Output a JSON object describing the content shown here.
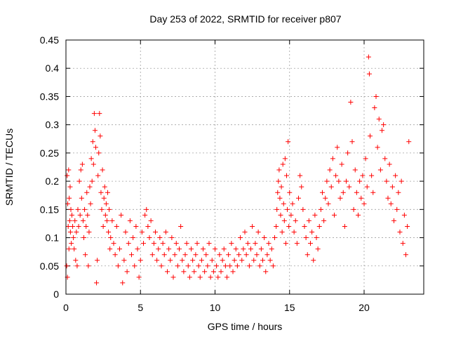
{
  "chart_data": {
    "type": "scatter",
    "title": "Day 253 of 2022, SRMTID for receiver p807",
    "xlabel": "GPS time / hours",
    "ylabel": "SRMTID / TECUs",
    "xlim": [
      0,
      24
    ],
    "ylim": [
      0,
      0.45
    ],
    "xticks": [
      0,
      5,
      10,
      15,
      20
    ],
    "xtick_labels": [
      "0",
      "5",
      "10",
      "15",
      "20"
    ],
    "yticks": [
      0,
      0.05,
      0.1,
      0.15,
      0.2,
      0.25,
      0.3,
      0.35,
      0.4,
      0.45
    ],
    "ytick_labels": [
      "0",
      "0.05",
      "0.1",
      "0.15",
      "0.2",
      "0.25",
      "0.3",
      "0.35",
      "0.4",
      "0.45"
    ],
    "grid": true,
    "marker": "plus",
    "marker_color": "#ff0000",
    "series": [
      {
        "name": "SRMTID",
        "points": [
          [
            0.05,
            0.05
          ],
          [
            0.08,
            0.21
          ],
          [
            0.1,
            0.03
          ],
          [
            0.12,
            0.16
          ],
          [
            0.15,
            0.12
          ],
          [
            0.18,
            0.22
          ],
          [
            0.2,
            0.08
          ],
          [
            0.22,
            0.17
          ],
          [
            0.25,
            0.13
          ],
          [
            0.28,
            0.19
          ],
          [
            0.3,
            0.11
          ],
          [
            0.33,
            0.15
          ],
          [
            0.36,
            0.09
          ],
          [
            0.4,
            0.14
          ],
          [
            0.45,
            0.12
          ],
          [
            0.5,
            0.1
          ],
          [
            0.55,
            0.08
          ],
          [
            0.6,
            0.13
          ],
          [
            0.65,
            0.06
          ],
          [
            0.7,
            0.11
          ],
          [
            0.75,
            0.05
          ],
          [
            0.8,
            0.15
          ],
          [
            0.85,
            0.12
          ],
          [
            0.9,
            0.2
          ],
          [
            0.95,
            0.14
          ],
          [
            1.0,
            0.22
          ],
          [
            1.05,
            0.17
          ],
          [
            1.1,
            0.23
          ],
          [
            1.15,
            0.13
          ],
          [
            1.2,
            0.1
          ],
          [
            1.25,
            0.15
          ],
          [
            1.3,
            0.07
          ],
          [
            1.35,
            0.12
          ],
          [
            1.4,
            0.18
          ],
          [
            1.45,
            0.14
          ],
          [
            1.5,
            0.05
          ],
          [
            1.55,
            0.11
          ],
          [
            1.6,
            0.19
          ],
          [
            1.65,
            0.16
          ],
          [
            1.7,
            0.24
          ],
          [
            1.75,
            0.2
          ],
          [
            1.8,
            0.27
          ],
          [
            1.85,
            0.23
          ],
          [
            1.9,
            0.32
          ],
          [
            1.95,
            0.29
          ],
          [
            2.0,
            0.26
          ],
          [
            2.05,
            0.02
          ],
          [
            2.1,
            0.06
          ],
          [
            2.15,
            0.21
          ],
          [
            2.2,
            0.25
          ],
          [
            2.25,
            0.32
          ],
          [
            2.3,
            0.28
          ],
          [
            2.35,
            0.18
          ],
          [
            2.4,
            0.15
          ],
          [
            2.45,
            0.22
          ],
          [
            2.5,
            0.12
          ],
          [
            2.55,
            0.17
          ],
          [
            2.6,
            0.19
          ],
          [
            2.65,
            0.14
          ],
          [
            2.7,
            0.16
          ],
          [
            2.75,
            0.13
          ],
          [
            2.8,
            0.18
          ],
          [
            2.85,
            0.11
          ],
          [
            2.9,
            0.15
          ],
          [
            2.95,
            0.08
          ],
          [
            3.0,
            0.1
          ],
          [
            3.1,
            0.13
          ],
          [
            3.2,
            0.09
          ],
          [
            3.3,
            0.07
          ],
          [
            3.4,
            0.12
          ],
          [
            3.5,
            0.05
          ],
          [
            3.6,
            0.08
          ],
          [
            3.7,
            0.14
          ],
          [
            3.8,
            0.02
          ],
          [
            3.9,
            0.06
          ],
          [
            4.0,
            0.11
          ],
          [
            4.1,
            0.04
          ],
          [
            4.2,
            0.09
          ],
          [
            4.3,
            0.13
          ],
          [
            4.4,
            0.07
          ],
          [
            4.5,
            0.1
          ],
          [
            4.6,
            0.05
          ],
          [
            4.7,
            0.12
          ],
          [
            4.8,
            0.08
          ],
          [
            4.9,
            0.03
          ],
          [
            5.0,
            0.06
          ],
          [
            5.1,
            0.11
          ],
          [
            5.2,
            0.09
          ],
          [
            5.3,
            0.14
          ],
          [
            5.4,
            0.15
          ],
          [
            5.5,
            0.12
          ],
          [
            5.6,
            0.1
          ],
          [
            5.7,
            0.13
          ],
          [
            5.8,
            0.07
          ],
          [
            5.9,
            0.09
          ],
          [
            6.0,
            0.11
          ],
          [
            6.1,
            0.06
          ],
          [
            6.2,
            0.08
          ],
          [
            6.3,
            0.1
          ],
          [
            6.4,
            0.05
          ],
          [
            6.5,
            0.09
          ],
          [
            6.6,
            0.07
          ],
          [
            6.7,
            0.11
          ],
          [
            6.8,
            0.04
          ],
          [
            6.9,
            0.08
          ],
          [
            7.0,
            0.06
          ],
          [
            7.1,
            0.1
          ],
          [
            7.2,
            0.03
          ],
          [
            7.3,
            0.07
          ],
          [
            7.4,
            0.09
          ],
          [
            7.5,
            0.05
          ],
          [
            7.6,
            0.08
          ],
          [
            7.7,
            0.12
          ],
          [
            7.8,
            0.06
          ],
          [
            7.9,
            0.04
          ],
          [
            8.0,
            0.07
          ],
          [
            8.1,
            0.09
          ],
          [
            8.2,
            0.05
          ],
          [
            8.3,
            0.03
          ],
          [
            8.4,
            0.08
          ],
          [
            8.5,
            0.06
          ],
          [
            8.6,
            0.04
          ],
          [
            8.7,
            0.07
          ],
          [
            8.8,
            0.09
          ],
          [
            8.9,
            0.05
          ],
          [
            9.0,
            0.03
          ],
          [
            9.1,
            0.06
          ],
          [
            9.2,
            0.08
          ],
          [
            9.3,
            0.04
          ],
          [
            9.4,
            0.07
          ],
          [
            9.5,
            0.05
          ],
          [
            9.6,
            0.09
          ],
          [
            9.7,
            0.03
          ],
          [
            9.8,
            0.06
          ],
          [
            9.9,
            0.04
          ],
          [
            10.0,
            0.08
          ],
          [
            10.1,
            0.05
          ],
          [
            10.2,
            0.03
          ],
          [
            10.3,
            0.07
          ],
          [
            10.4,
            0.04
          ],
          [
            10.5,
            0.06
          ],
          [
            10.6,
            0.08
          ],
          [
            10.7,
            0.05
          ],
          [
            10.8,
            0.03
          ],
          [
            10.9,
            0.07
          ],
          [
            11.0,
            0.05
          ],
          [
            11.1,
            0.09
          ],
          [
            11.2,
            0.04
          ],
          [
            11.3,
            0.06
          ],
          [
            11.4,
            0.08
          ],
          [
            11.5,
            0.05
          ],
          [
            11.6,
            0.07
          ],
          [
            11.7,
            0.1
          ],
          [
            11.8,
            0.06
          ],
          [
            11.9,
            0.08
          ],
          [
            12.0,
            0.11
          ],
          [
            12.1,
            0.07
          ],
          [
            12.2,
            0.09
          ],
          [
            12.3,
            0.05
          ],
          [
            12.4,
            0.08
          ],
          [
            12.5,
            0.12
          ],
          [
            12.6,
            0.06
          ],
          [
            12.7,
            0.09
          ],
          [
            12.8,
            0.07
          ],
          [
            12.9,
            0.11
          ],
          [
            13.0,
            0.05
          ],
          [
            13.1,
            0.08
          ],
          [
            13.2,
            0.06
          ],
          [
            13.3,
            0.1
          ],
          [
            13.4,
            0.04
          ],
          [
            13.5,
            0.07
          ],
          [
            13.6,
            0.09
          ],
          [
            13.7,
            0.06
          ],
          [
            13.8,
            0.08
          ],
          [
            13.9,
            0.05
          ],
          [
            14.0,
            0.1
          ],
          [
            14.1,
            0.12
          ],
          [
            14.15,
            0.15
          ],
          [
            14.2,
            0.18
          ],
          [
            14.25,
            0.2
          ],
          [
            14.3,
            0.22
          ],
          [
            14.35,
            0.17
          ],
          [
            14.4,
            0.14
          ],
          [
            14.45,
            0.19
          ],
          [
            14.5,
            0.11
          ],
          [
            14.55,
            0.23
          ],
          [
            14.6,
            0.16
          ],
          [
            14.65,
            0.13
          ],
          [
            14.7,
            0.24
          ],
          [
            14.75,
            0.09
          ],
          [
            14.8,
            0.21
          ],
          [
            14.85,
            0.15
          ],
          [
            14.9,
            0.27
          ],
          [
            14.95,
            0.12
          ],
          [
            15.0,
            0.18
          ],
          [
            15.1,
            0.14
          ],
          [
            15.2,
            0.16
          ],
          [
            15.3,
            0.11
          ],
          [
            15.4,
            0.13
          ],
          [
            15.5,
            0.09
          ],
          [
            15.6,
            0.17
          ],
          [
            15.7,
            0.21
          ],
          [
            15.8,
            0.19
          ],
          [
            15.9,
            0.15
          ],
          [
            16.0,
            0.12
          ],
          [
            16.1,
            0.1
          ],
          [
            16.2,
            0.07
          ],
          [
            16.3,
            0.13
          ],
          [
            16.4,
            0.09
          ],
          [
            16.5,
            0.11
          ],
          [
            16.6,
            0.06
          ],
          [
            16.7,
            0.14
          ],
          [
            16.8,
            0.1
          ],
          [
            16.9,
            0.08
          ],
          [
            17.0,
            0.12
          ],
          [
            17.1,
            0.15
          ],
          [
            17.2,
            0.18
          ],
          [
            17.3,
            0.13
          ],
          [
            17.4,
            0.17
          ],
          [
            17.5,
            0.2
          ],
          [
            17.6,
            0.16
          ],
          [
            17.7,
            0.22
          ],
          [
            17.8,
            0.19
          ],
          [
            17.9,
            0.24
          ],
          [
            18.0,
            0.14
          ],
          [
            18.1,
            0.21
          ],
          [
            18.2,
            0.26
          ],
          [
            18.3,
            0.2
          ],
          [
            18.4,
            0.17
          ],
          [
            18.5,
            0.23
          ],
          [
            18.6,
            0.18
          ],
          [
            18.7,
            0.12
          ],
          [
            18.8,
            0.2
          ],
          [
            18.9,
            0.25
          ],
          [
            19.0,
            0.19
          ],
          [
            19.1,
            0.34
          ],
          [
            19.2,
            0.27
          ],
          [
            19.3,
            0.15
          ],
          [
            19.4,
            0.22
          ],
          [
            19.5,
            0.18
          ],
          [
            19.6,
            0.14
          ],
          [
            19.7,
            0.2
          ],
          [
            19.8,
            0.17
          ],
          [
            19.9,
            0.21
          ],
          [
            20.0,
            0.16
          ],
          [
            20.1,
            0.24
          ],
          [
            20.2,
            0.19
          ],
          [
            20.3,
            0.42
          ],
          [
            20.35,
            0.39
          ],
          [
            20.4,
            0.28
          ],
          [
            20.5,
            0.21
          ],
          [
            20.6,
            0.18
          ],
          [
            20.7,
            0.33
          ],
          [
            20.8,
            0.35
          ],
          [
            20.9,
            0.26
          ],
          [
            21.0,
            0.31
          ],
          [
            21.1,
            0.22
          ],
          [
            21.2,
            0.29
          ],
          [
            21.3,
            0.3
          ],
          [
            21.4,
            0.24
          ],
          [
            21.5,
            0.2
          ],
          [
            21.6,
            0.17
          ],
          [
            21.7,
            0.23
          ],
          [
            21.8,
            0.16
          ],
          [
            21.9,
            0.19
          ],
          [
            22.0,
            0.13
          ],
          [
            22.1,
            0.21
          ],
          [
            22.2,
            0.15
          ],
          [
            22.3,
            0.18
          ],
          [
            22.4,
            0.11
          ],
          [
            22.5,
            0.2
          ],
          [
            22.6,
            0.09
          ],
          [
            22.7,
            0.14
          ],
          [
            22.8,
            0.07
          ],
          [
            22.9,
            0.12
          ],
          [
            23.0,
            0.27
          ]
        ]
      }
    ]
  }
}
